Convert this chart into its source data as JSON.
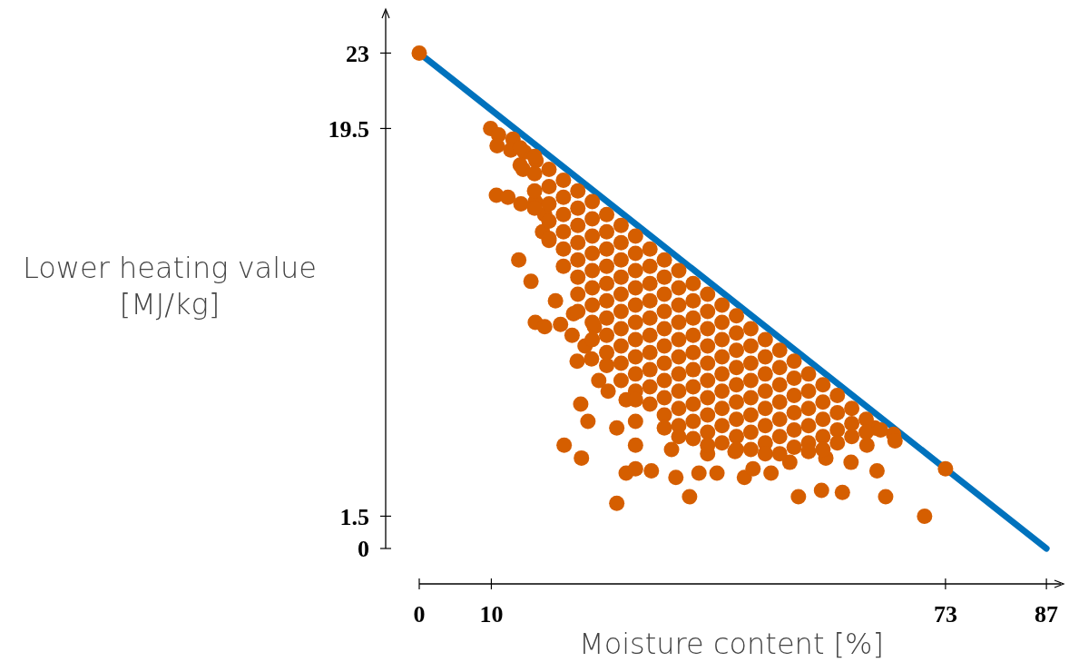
{
  "chart_data": {
    "type": "scatter",
    "xlabel": "Moisture content [%]",
    "ylabel": "Lower heating value\n[MJ/kg]",
    "xlim": [
      0,
      89
    ],
    "ylim": [
      0,
      25
    ],
    "xticks": [
      0,
      10,
      73,
      87
    ],
    "yticks": [
      0,
      1.5,
      19.5,
      23
    ],
    "series": [
      {
        "type": "line",
        "color": "#0072bd",
        "x": [
          0,
          87
        ],
        "values": [
          23,
          0
        ]
      },
      {
        "marker": "circle",
        "color": "#d55e00",
        "x": [
          0,
          9.9,
          11.0,
          13.0,
          10.8,
          12.7,
          14.6,
          14.4,
          16.2,
          10.7,
          12.3,
          14.1,
          16.1,
          17.4,
          17.1,
          18.0,
          13.8,
          15.5,
          16.1,
          17.4,
          18.9,
          19.6,
          21.4,
          21.2,
          21.9,
          23.0,
          23.9,
          24.3,
          24.9,
          22.4,
          23.4,
          20.1,
          22.5,
          27.4,
          28.7,
          30.0,
          32.2,
          37.5,
          35.6,
          38.8,
          41.3,
          45.1,
          46.3,
          48.8,
          52.6,
          55.8,
          58.7,
          59.9,
          63.5,
          64.7,
          70.1,
          73.0,
          63.2,
          65.8,
          62.1,
          56.4,
          51.4,
          43.8,
          40.0,
          35.0,
          30.0,
          27.4,
          28.7,
          26.2,
          30.0,
          14,
          14,
          16,
          16,
          16,
          16,
          18,
          18,
          18,
          18,
          18,
          20,
          20,
          20,
          20,
          20,
          20,
          22,
          22,
          22,
          22,
          22,
          22,
          22,
          22,
          24,
          24,
          24,
          24,
          24,
          24,
          24,
          24,
          24,
          26,
          26,
          26,
          26,
          26,
          26,
          26,
          26,
          26,
          26,
          28,
          28,
          28,
          28,
          28,
          28,
          28,
          28,
          28,
          28,
          30,
          30,
          30,
          30,
          30,
          30,
          30,
          30,
          30,
          30,
          30,
          32,
          32,
          32,
          32,
          32,
          32,
          32,
          32,
          32,
          32,
          34,
          34,
          34,
          34,
          34,
          34,
          34,
          34,
          34,
          34,
          34,
          36,
          36,
          36,
          36,
          36,
          36,
          36,
          36,
          36,
          36,
          36,
          38,
          38,
          38,
          38,
          38,
          38,
          38,
          38,
          38,
          38,
          40,
          40,
          40,
          40,
          40,
          40,
          40,
          40,
          40,
          40,
          42,
          42,
          42,
          42,
          42,
          42,
          42,
          42,
          42,
          44,
          44,
          44,
          44,
          44,
          44,
          44,
          44,
          44,
          46,
          46,
          46,
          46,
          46,
          46,
          46,
          46,
          48,
          48,
          48,
          48,
          48,
          48,
          48,
          48,
          50,
          50,
          50,
          50,
          50,
          50,
          50,
          52,
          52,
          52,
          52,
          52,
          52,
          54,
          54,
          54,
          54,
          54,
          54,
          56,
          56,
          56,
          56,
          56,
          58,
          58,
          58,
          58,
          60,
          60,
          60,
          62,
          62,
          64,
          66
        ],
        "values": [
          23,
          19.5,
          19.2,
          19.0,
          18.7,
          18.5,
          18.4,
          17.6,
          18.0,
          16.4,
          16.3,
          16.0,
          16.1,
          15.5,
          14.7,
          14.3,
          13.4,
          12.4,
          10.5,
          10.3,
          11.5,
          10.4,
          10.9,
          9.9,
          8.7,
          9.4,
          8.8,
          10.3,
          7.8,
          6.7,
          5.9,
          4.8,
          4.2,
          2.1,
          3.5,
          3.7,
          3.6,
          2.4,
          3.3,
          3.5,
          3.5,
          3.3,
          3.7,
          3.5,
          2.4,
          2.7,
          2.6,
          4.0,
          3.6,
          2.4,
          1.5,
          3.7,
          5.6,
          5.3,
          4.8,
          4.2,
          4.0,
          4.5,
          4.4,
          4.6,
          4.8,
          5.6,
          6.9,
          7.3,
          5.9,
          18.6,
          17.8,
          18.2,
          17.4,
          16.6,
          15.8,
          17.6,
          16.8,
          16.0,
          15.2,
          14.4,
          17.1,
          16.3,
          15.5,
          14.7,
          13.9,
          13.1,
          16.6,
          15.8,
          15.0,
          14.2,
          13.4,
          12.6,
          11.8,
          11.0,
          16.1,
          15.3,
          14.5,
          13.7,
          12.9,
          12.1,
          11.3,
          10.5,
          9.7,
          15.5,
          14.7,
          13.9,
          13.1,
          12.3,
          11.5,
          10.7,
          9.9,
          9.1,
          8.5,
          15.0,
          14.2,
          13.4,
          12.6,
          11.8,
          11.0,
          10.2,
          9.4,
          8.6,
          7.8,
          14.5,
          13.7,
          12.9,
          12.1,
          11.3,
          10.5,
          9.7,
          8.9,
          8.1,
          7.3,
          6.9,
          13.9,
          13.1,
          12.3,
          11.5,
          10.7,
          9.9,
          9.1,
          8.3,
          7.5,
          6.7,
          13.4,
          12.6,
          11.8,
          11.0,
          10.2,
          9.4,
          8.6,
          7.8,
          7.0,
          6.2,
          5.6,
          12.9,
          12.1,
          11.3,
          10.5,
          9.7,
          8.9,
          8.1,
          7.3,
          6.5,
          5.7,
          5.2,
          12.3,
          11.5,
          10.7,
          9.9,
          9.1,
          8.3,
          7.5,
          6.7,
          5.9,
          5.1,
          11.8,
          11.0,
          10.2,
          9.4,
          8.6,
          7.8,
          7.0,
          6.2,
          5.4,
          4.8,
          11.3,
          10.5,
          9.7,
          8.9,
          8.1,
          7.3,
          6.5,
          5.7,
          4.9,
          10.8,
          10.0,
          9.2,
          8.4,
          7.6,
          6.8,
          6.0,
          5.2,
          4.6,
          10.2,
          9.4,
          8.6,
          7.8,
          7.0,
          6.2,
          5.4,
          4.6,
          9.7,
          8.9,
          8.1,
          7.3,
          6.5,
          5.7,
          4.9,
          4.4,
          9.2,
          8.4,
          7.6,
          6.8,
          6.0,
          5.2,
          4.4,
          8.7,
          7.9,
          7.1,
          6.3,
          5.5,
          4.7,
          8.1,
          7.3,
          6.5,
          5.7,
          4.9,
          4.5,
          7.6,
          6.8,
          6.0,
          5.2,
          4.6,
          7.1,
          6.3,
          5.5,
          4.9,
          6.5,
          5.8,
          5.2,
          6.0,
          5.4,
          5.5,
          5.0
        ]
      }
    ]
  }
}
